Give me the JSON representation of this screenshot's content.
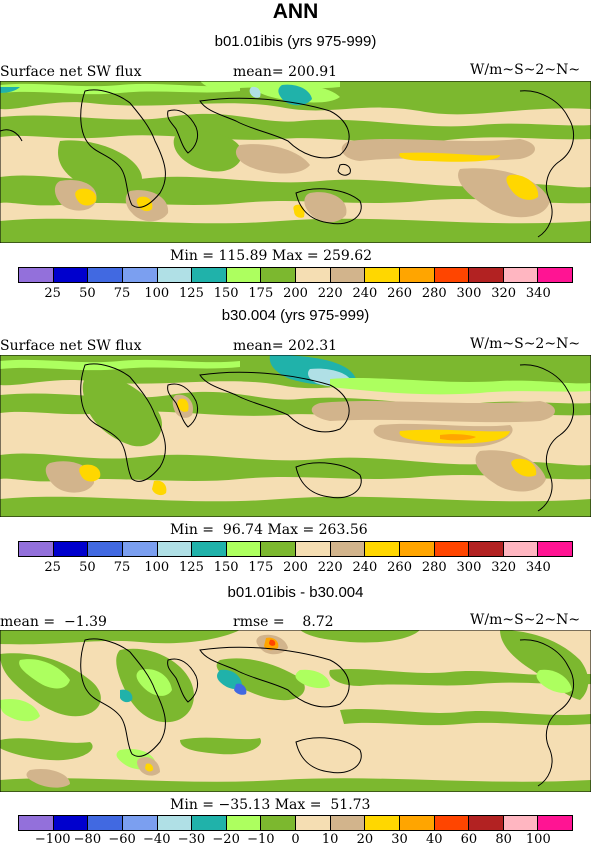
{
  "title": "ANN",
  "colormap": [
    "#9370db",
    "#0000cd",
    "#4169e1",
    "#7b9ff0",
    "#b0e0e6",
    "#20b2aa",
    "#adff5f",
    "#7cb82f",
    "#f5deb3",
    "#d2b48c",
    "#ffd700",
    "#ffa500",
    "#ff4500",
    "#b22222",
    "#ffb6c1",
    "#ff1493"
  ],
  "panels": [
    {
      "subtitle": "b01.01ibis (yrs 975-999)",
      "left_label": "Surface net SW flux",
      "center_label": "mean= 200.91",
      "units": "W/m~S~2~N~",
      "stats": "Min = 115.89 Max = 259.62",
      "ticks": [
        "25",
        "50",
        "75",
        "100",
        "125",
        "150",
        "175",
        "200",
        "220",
        "240",
        "260",
        "280",
        "300",
        "320",
        "340"
      ]
    },
    {
      "subtitle": "b30.004 (yrs 975-999)",
      "left_label": "Surface net SW flux",
      "center_label": "mean= 202.31",
      "units": "W/m~S~2~N~",
      "stats": "Min =  96.74 Max = 263.56",
      "ticks": [
        "25",
        "50",
        "75",
        "100",
        "125",
        "150",
        "175",
        "200",
        "220",
        "240",
        "260",
        "280",
        "300",
        "320",
        "340"
      ]
    },
    {
      "subtitle": "b01.01ibis - b30.004",
      "left_label": "mean =  −1.39",
      "center_label": "rmse =    8.72",
      "units": "W/m~S~2~N~",
      "stats": "Min = −35.13 Max =  51.73",
      "ticks": [
        "−100",
        "−80",
        "−60",
        "−40",
        "−30",
        "−20",
        "−10",
        "0",
        "10",
        "20",
        "30",
        "40",
        "60",
        "80",
        "100"
      ]
    }
  ]
}
